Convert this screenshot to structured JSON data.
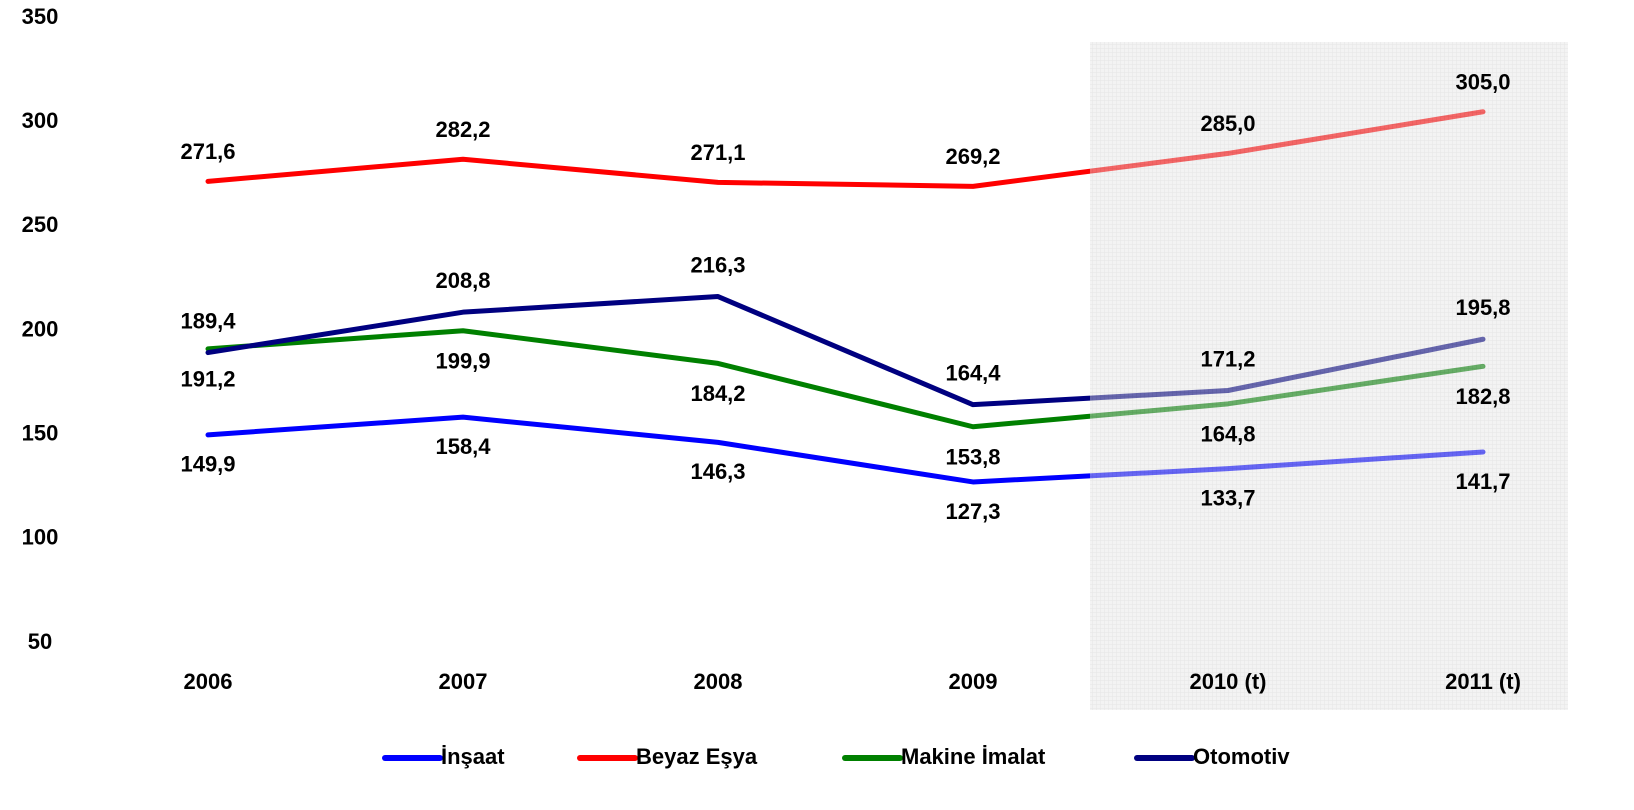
{
  "chart_data": {
    "type": "line",
    "categories": [
      "2006",
      "2007",
      "2008",
      "2009",
      "2010 (t)",
      "2011 (t)"
    ],
    "series": [
      {
        "name": "İnşaat",
        "color": "#0000ff",
        "values": [
          149.9,
          158.4,
          146.3,
          127.3,
          133.7,
          141.7
        ],
        "value_labels": [
          "149,9",
          "158,4",
          "146,3",
          "127,3",
          "133,7",
          "141,7"
        ]
      },
      {
        "name": "Beyaz Eşya",
        "color": "#ff0000",
        "values": [
          271.6,
          282.2,
          271.1,
          269.2,
          285.0,
          305.0
        ],
        "value_labels": [
          "271,6",
          "282,2",
          "271,1",
          "269,2",
          "285,0",
          "305,0"
        ]
      },
      {
        "name": "Makine İmalat",
        "color": "#008000",
        "values": [
          191.2,
          199.9,
          184.2,
          153.8,
          164.8,
          182.8
        ],
        "value_labels": [
          "191,2",
          "199,9",
          "184,2",
          "153,8",
          "164,8",
          "182,8"
        ]
      },
      {
        "name": "Otomotiv",
        "color": "#000080",
        "values": [
          189.4,
          208.8,
          216.3,
          164.4,
          171.2,
          195.8
        ],
        "value_labels": [
          "189,4",
          "208,8",
          "216,3",
          "164,4",
          "171,2",
          "195,8"
        ]
      }
    ],
    "ylim": [
      50,
      350
    ],
    "yticks": [
      50,
      100,
      150,
      200,
      250,
      300,
      350
    ],
    "grid": false,
    "legend": "bottom"
  }
}
